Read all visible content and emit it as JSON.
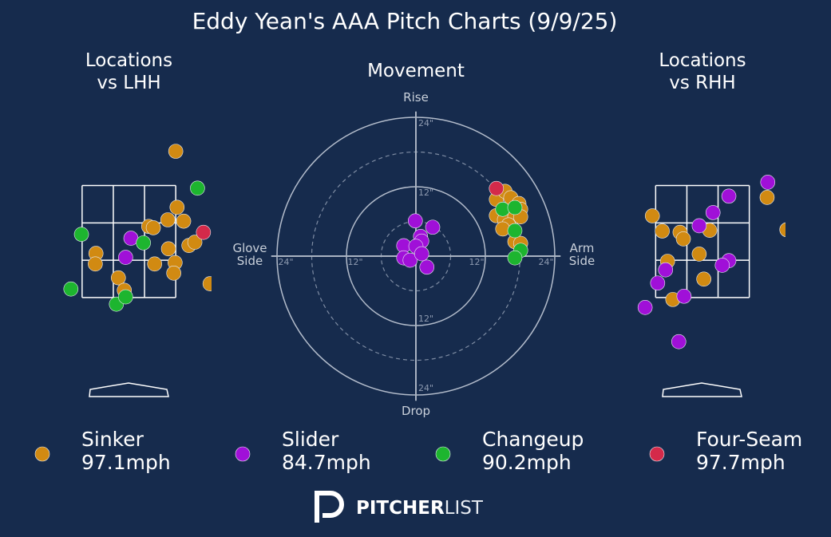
{
  "title": "Eddy Yean's AAA Pitch Charts (9/9/25)",
  "legend": [
    {
      "name": "Sinker",
      "color": "#d18a12",
      "speed": "97.1mph"
    },
    {
      "name": "Slider",
      "color": "#a010d8",
      "speed": "84.7mph"
    },
    {
      "name": "Changeup",
      "color": "#1db52f",
      "speed": "90.2mph"
    },
    {
      "name": "Four-Seam",
      "color": "#d42a4a",
      "speed": "97.7mph"
    }
  ],
  "chart_data": [
    {
      "type": "location",
      "title": "Locations vs LHH",
      "xlim": [
        -1.25,
        1.25
      ],
      "ylim": [
        0,
        4.3
      ],
      "strike_zone": {
        "x": [
          -0.71,
          0.71
        ],
        "y": [
          1.6,
          3.3
        ]
      },
      "series": [
        {
          "x": [
            0.71,
            0.73,
            0.59,
            0.83,
            0.3,
            0.37,
            -0.5,
            -0.51,
            0.6,
            0.91,
            1.0,
            0.39,
            0.7,
            0.68,
            -0.16,
            -0.07,
            1.23
          ],
          "values": [
            3.82,
            2.97,
            2.78,
            2.76,
            2.68,
            2.66,
            2.27,
            2.11,
            2.34,
            2.39,
            2.44,
            2.11,
            2.13,
            1.97,
            1.9,
            1.71,
            1.81
          ]
        },
        {
          "x": [
            0.03,
            -0.05
          ],
          "values": [
            2.5,
            2.21
          ]
        },
        {
          "x": [
            1.04,
            -0.72,
            0.22,
            -0.88,
            -0.19,
            -0.05
          ],
          "values": [
            3.26,
            2.56,
            2.43,
            1.73,
            1.5,
            1.61
          ]
        },
        {
          "x": [
            1.13
          ],
          "values": [
            2.59
          ]
        }
      ]
    },
    {
      "type": "movement",
      "title": "Movement",
      "xlim": [
        -25,
        25
      ],
      "ylim": [
        -25,
        25
      ],
      "rticks": [
        {
          "value": 12,
          "label": "12\""
        },
        {
          "value": 24,
          "label": "24\""
        }
      ],
      "minor_rticks": [
        6,
        18
      ],
      "axis_labels": {
        "top": "Rise",
        "bottom": "Drop",
        "left": "Glove Side",
        "right": "Arm Side"
      },
      "series": [
        {
          "x": [
            13.9,
            15.4,
            16.4,
            17.8,
            18.1,
            13.9,
            15.3,
            17.1,
            18.1,
            16.0,
            15.0,
            17.1,
            18.1
          ],
          "values": [
            9.8,
            11.2,
            10.1,
            9.1,
            8.1,
            7.0,
            6.3,
            6.8,
            6.8,
            5.4,
            4.7,
            2.5,
            2.2
          ]
        },
        {
          "x": [
            -0.1,
            2.9,
            0.8,
            1.0,
            -2.1,
            0.0,
            -2.1,
            -1.0,
            1.0,
            1.9
          ],
          "values": [
            6.1,
            5.0,
            3.4,
            2.6,
            1.8,
            1.7,
            -0.3,
            -0.7,
            0.4,
            -1.9
          ]
        },
        {
          "x": [
            15.0,
            17.1,
            17.1,
            18.1,
            17.1
          ],
          "values": [
            8.1,
            8.4,
            4.4,
            1.0,
            -0.3
          ]
        },
        {
          "x": [
            13.9
          ],
          "values": [
            11.7
          ]
        }
      ]
    },
    {
      "type": "location",
      "title": "Locations vs RHH",
      "xlim": [
        -1.25,
        1.25
      ],
      "ylim": [
        0,
        4.3
      ],
      "strike_zone": {
        "x": [
          -0.71,
          0.71
        ],
        "y": [
          1.6,
          3.3
        ]
      },
      "series": [
        {
          "x": [
            0.98,
            -0.76,
            -0.61,
            -0.34,
            -0.29,
            0.11,
            1.28,
            -0.53,
            -0.05,
            0.02,
            -0.45
          ],
          "values": [
            3.12,
            2.84,
            2.61,
            2.59,
            2.49,
            2.62,
            2.63,
            2.15,
            2.26,
            1.88,
            1.57
          ]
        },
        {
          "x": [
            0.99,
            0.4,
            0.16,
            -0.05,
            0.4,
            0.3,
            -0.56,
            -0.68,
            -0.28,
            -0.87,
            -0.36
          ],
          "values": [
            3.35,
            3.14,
            2.89,
            2.69,
            2.16,
            2.09,
            2.02,
            1.82,
            1.62,
            1.45,
            0.93
          ]
        },
        {
          "x": [],
          "values": []
        },
        {
          "x": [],
          "values": []
        }
      ]
    }
  ],
  "logo": {
    "bold": "PITCHER",
    "light": "LIST"
  }
}
